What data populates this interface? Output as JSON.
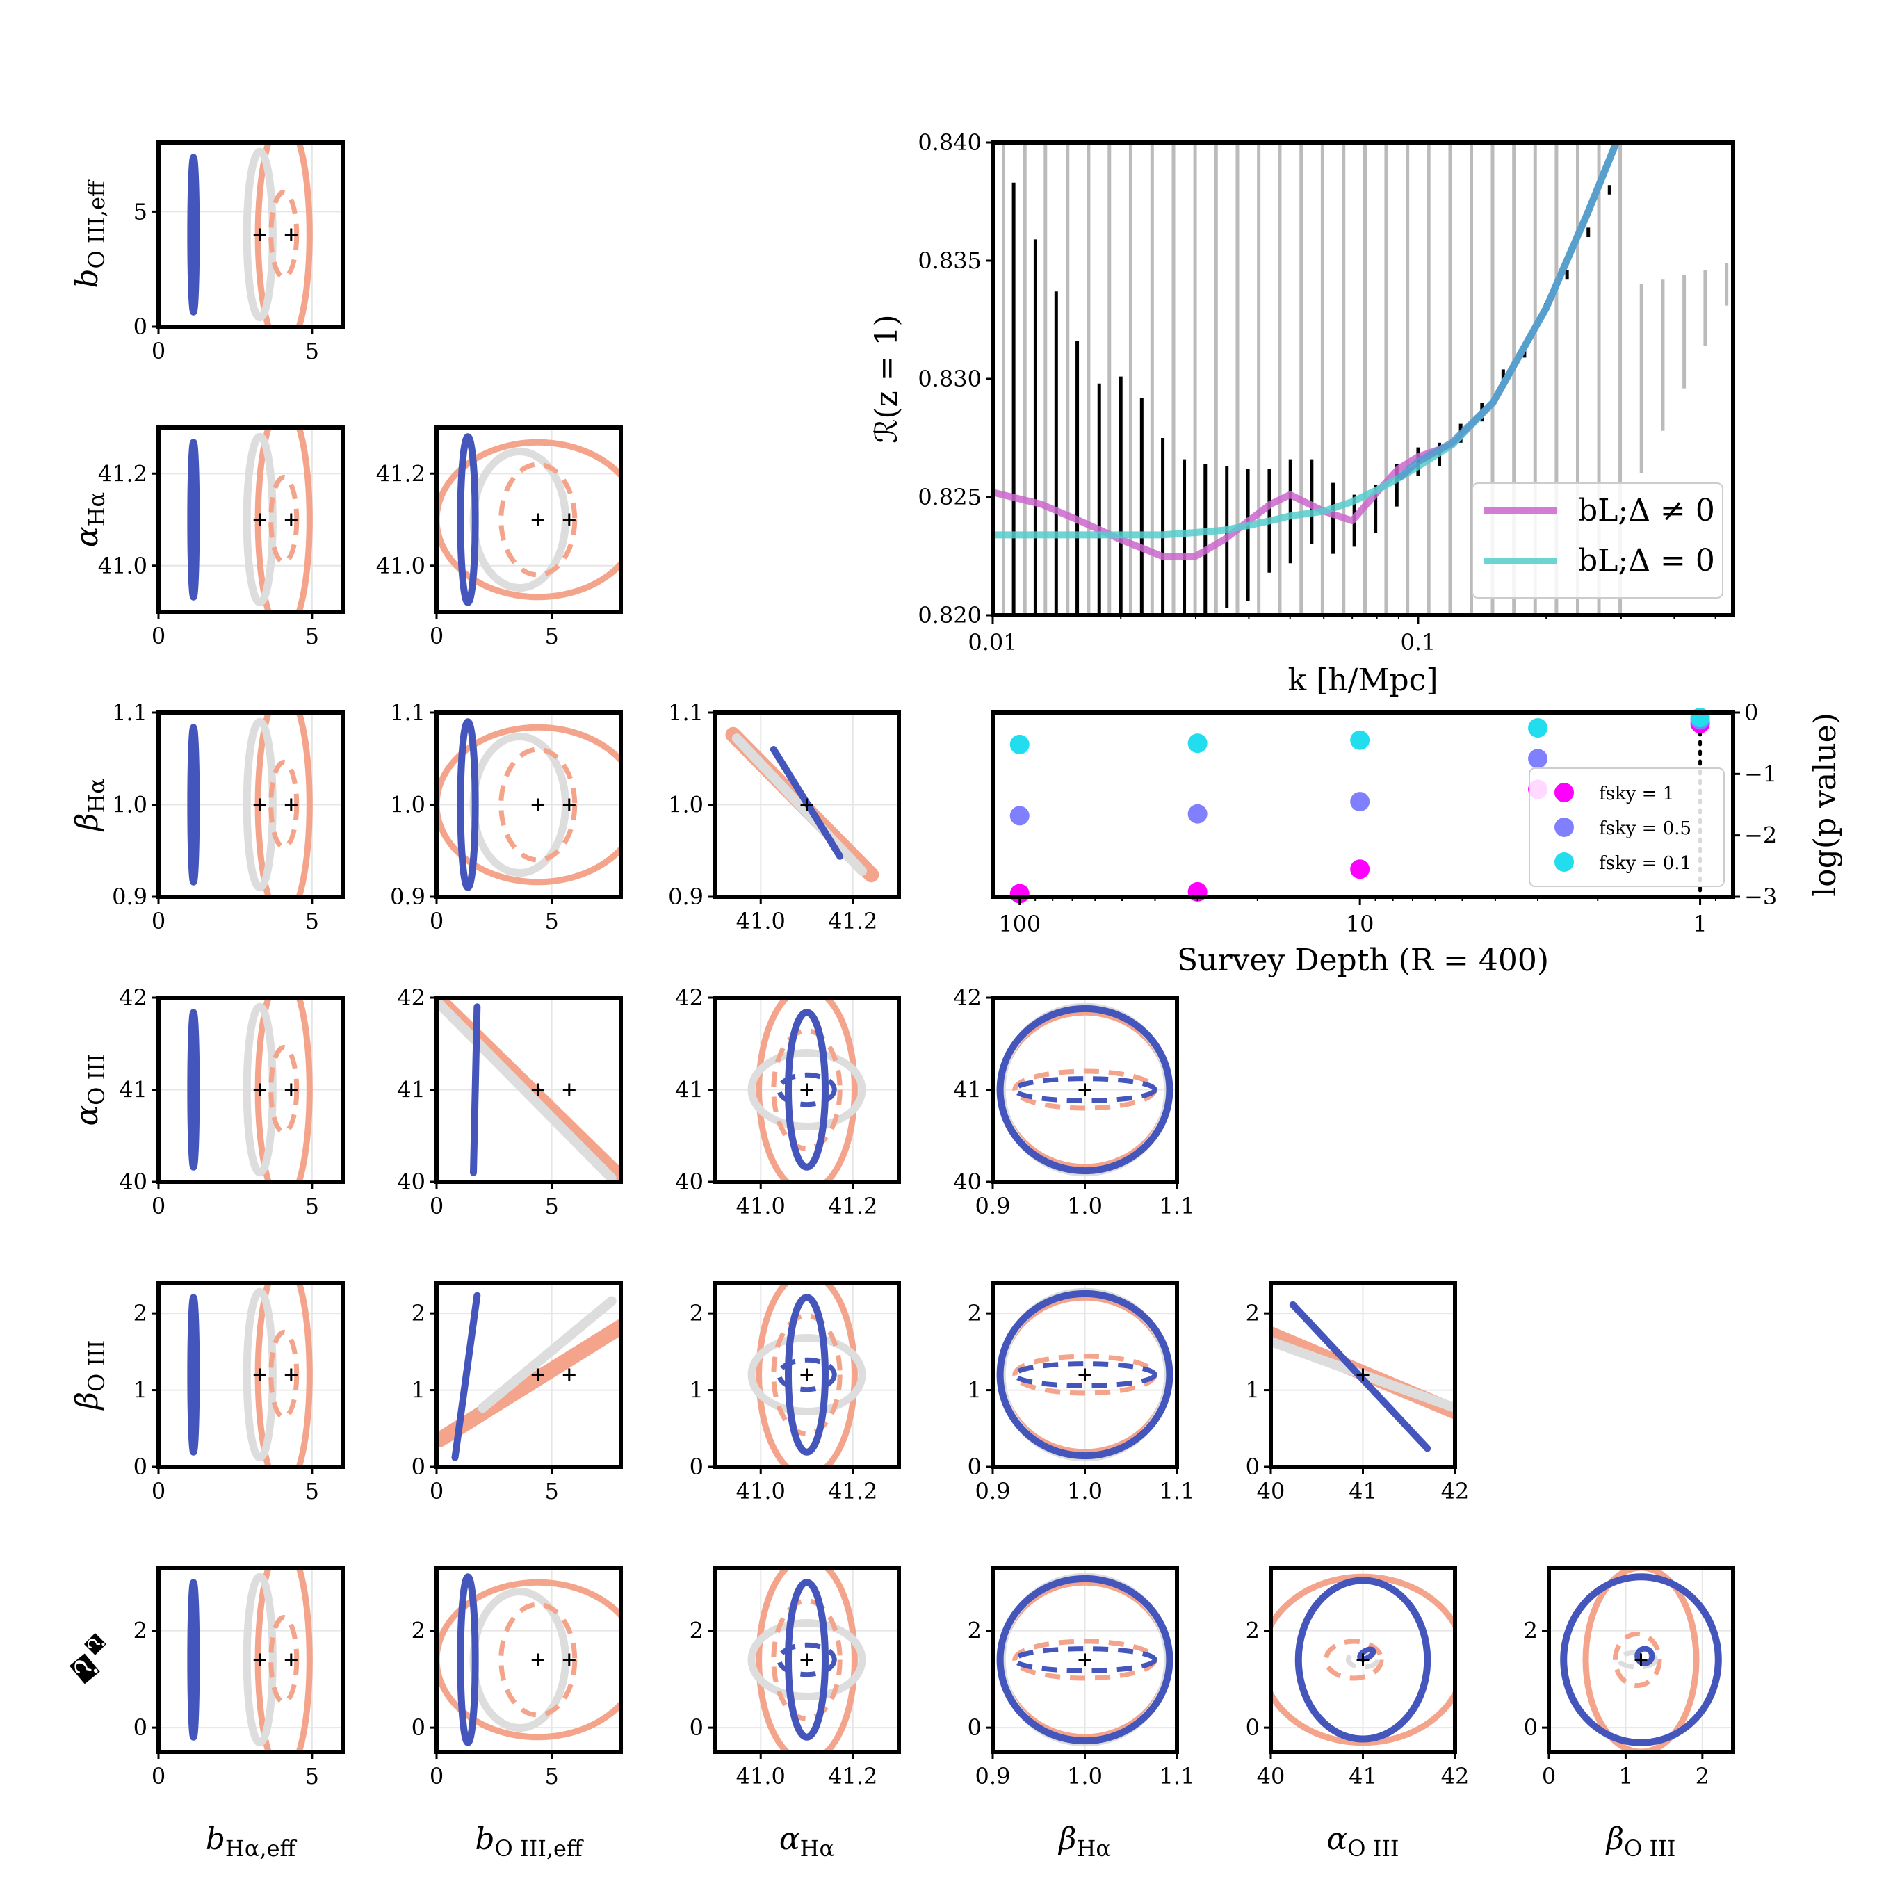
{
  "corner_plot": {
    "params": [
      "b_Hα,eff",
      "b_O III,eff",
      "α_Hα",
      "β_Hα",
      "α_O III",
      "β_O III",
      "N"
    ],
    "param_labels": [
      "bHα,eff",
      "bO III,eff",
      "αHα",
      "βHα",
      "αO III",
      "βO III",
      "𝒩"
    ],
    "fiducial": [
      1.2,
      4.8,
      41.1,
      1.0,
      41.0,
      1.2,
      1.45
    ],
    "alt_fiducials": [
      [
        3.2,
        3.5
      ],
      [
        4.2,
        4.8
      ]
    ],
    "colors": {
      "blue": "#4455bb",
      "gray": "#dddddd",
      "salmon": "#f4a48b"
    },
    "axes": [
      {
        "range": [
          0,
          6
        ],
        "ticks": [
          0,
          5
        ],
        "tick_labels": [
          "0",
          "5"
        ]
      },
      {
        "range": [
          0,
          8
        ],
        "ticks": [
          0,
          5
        ],
        "tick_labels": [
          "0",
          "5"
        ]
      },
      {
        "range": [
          40.9,
          41.3
        ],
        "ticks": [
          41.0,
          41.2
        ],
        "tick_labels": [
          "41.0",
          "41.2"
        ]
      },
      {
        "range": [
          0.9,
          1.1
        ],
        "ticks": [
          0.9,
          1.0,
          1.1
        ],
        "tick_labels": [
          "0.9",
          "1.0",
          "1.1"
        ]
      },
      {
        "range": [
          40,
          42
        ],
        "ticks": [
          40,
          41,
          42
        ],
        "tick_labels": [
          "40",
          "41",
          "42"
        ]
      },
      {
        "range": [
          0,
          2.4
        ],
        "ticks": [
          0,
          1,
          2
        ],
        "tick_labels": [
          "0",
          "1",
          "2"
        ]
      },
      {
        "range": [
          -0.5,
          3.3
        ],
        "ticks": [
          0,
          2
        ],
        "tick_labels": [
          "0",
          "2"
        ]
      }
    ],
    "y_axes": [
      null,
      {
        "range": [
          0,
          8
        ],
        "ticks": [
          0,
          5
        ],
        "tick_labels": [
          "0",
          "5"
        ]
      },
      {
        "range": [
          40.9,
          41.3
        ],
        "ticks": [
          41.0,
          41.2
        ],
        "tick_labels": [
          "41.0",
          "41.2"
        ]
      },
      {
        "range": [
          0.9,
          1.1
        ],
        "ticks": [
          0.9,
          1.0,
          1.1
        ],
        "tick_labels": [
          "0.9",
          "1.0",
          "1.1"
        ]
      },
      {
        "range": [
          40,
          42
        ],
        "ticks": [
          40,
          41,
          42
        ],
        "tick_labels": [
          "40",
          "41",
          "42"
        ]
      },
      {
        "range": [
          0,
          2.4
        ],
        "ticks": [
          0,
          1,
          2
        ],
        "tick_labels": [
          "0",
          "1",
          "2"
        ]
      },
      {
        "range": [
          -0.5,
          3.3
        ],
        "ticks": [
          0,
          2
        ],
        "tick_labels": [
          "0",
          "2"
        ]
      }
    ]
  },
  "chart_data": [
    {
      "type": "line",
      "xlabel": "k [h/Mpc]",
      "ylabel": "ℛ(z = 1)",
      "x_scale": "log",
      "xlim": [
        0.01,
        0.55
      ],
      "ylim": [
        0.82,
        0.84
      ],
      "x_ticks": [
        "0.01",
        "0.1"
      ],
      "y_ticks": [
        "0.820",
        "0.825",
        "0.830",
        "0.835",
        "0.840"
      ],
      "legend_position": "bottom-right",
      "series": [
        {
          "name": "bL;Δ ≠ 0",
          "color": "#cc66cc",
          "x": [
            0.01,
            0.013,
            0.016,
            0.02,
            0.025,
            0.03,
            0.035,
            0.04,
            0.045,
            0.05,
            0.06,
            0.07,
            0.08,
            0.09,
            0.1,
            0.12,
            0.15,
            0.2,
            0.25,
            0.3
          ],
          "y": [
            0.8252,
            0.8247,
            0.824,
            0.8232,
            0.8225,
            0.8225,
            0.8232,
            0.824,
            0.8247,
            0.8251,
            0.8244,
            0.824,
            0.8252,
            0.8262,
            0.8267,
            0.8272,
            0.829,
            0.833,
            0.837,
            0.8405
          ]
        },
        {
          "name": "bL;Δ = 0",
          "color": "#55cccc",
          "x": [
            0.01,
            0.013,
            0.016,
            0.02,
            0.025,
            0.03,
            0.035,
            0.04,
            0.045,
            0.05,
            0.06,
            0.07,
            0.08,
            0.09,
            0.1,
            0.12,
            0.15,
            0.2,
            0.25,
            0.3
          ],
          "y": [
            0.8234,
            0.8234,
            0.8234,
            0.8234,
            0.8234,
            0.8235,
            0.8236,
            0.8238,
            0.824,
            0.8242,
            0.8244,
            0.8248,
            0.8253,
            0.8258,
            0.8263,
            0.8272,
            0.829,
            0.833,
            0.837,
            0.8405
          ]
        },
        {
          "name": "",
          "color": "#5599cc",
          "x": [
            0.09,
            0.1,
            0.12,
            0.15,
            0.2,
            0.25,
            0.3
          ],
          "y": [
            0.8258,
            0.8265,
            0.8273,
            0.829,
            0.833,
            0.837,
            0.8405
          ]
        }
      ],
      "errorbars_black": [
        {
          "x": 0.01,
          "y": 0.825,
          "err": 0.025
        },
        {
          "x": 0.0112,
          "y": 0.8248,
          "err": 0.0135
        },
        {
          "x": 0.0126,
          "y": 0.8246,
          "err": 0.0113
        },
        {
          "x": 0.0141,
          "y": 0.8244,
          "err": 0.0093
        },
        {
          "x": 0.0158,
          "y": 0.824,
          "err": 0.0076
        },
        {
          "x": 0.0178,
          "y": 0.8237,
          "err": 0.0061
        },
        {
          "x": 0.02,
          "y": 0.8233,
          "err": 0.0068
        },
        {
          "x": 0.0224,
          "y": 0.8229,
          "err": 0.0063
        },
        {
          "x": 0.0251,
          "y": 0.8226,
          "err": 0.0049
        },
        {
          "x": 0.0282,
          "y": 0.8224,
          "err": 0.0042
        },
        {
          "x": 0.0316,
          "y": 0.823,
          "err": 0.0034
        },
        {
          "x": 0.0355,
          "y": 0.8233,
          "err": 0.003
        },
        {
          "x": 0.0398,
          "y": 0.8234,
          "err": 0.0028
        },
        {
          "x": 0.0447,
          "y": 0.824,
          "err": 0.0022
        },
        {
          "x": 0.0501,
          "y": 0.8244,
          "err": 0.0022
        },
        {
          "x": 0.0562,
          "y": 0.8248,
          "err": 0.0018
        },
        {
          "x": 0.0631,
          "y": 0.8241,
          "err": 0.0015
        },
        {
          "x": 0.0708,
          "y": 0.824,
          "err": 0.0011
        },
        {
          "x": 0.0794,
          "y": 0.8245,
          "err": 0.001
        },
        {
          "x": 0.0891,
          "y": 0.8255,
          "err": 0.0009
        },
        {
          "x": 0.1,
          "y": 0.8265,
          "err": 0.0006
        },
        {
          "x": 0.1122,
          "y": 0.8268,
          "err": 0.0005
        },
        {
          "x": 0.1259,
          "y": 0.8277,
          "err": 0.0004
        },
        {
          "x": 0.1413,
          "y": 0.8286,
          "err": 0.0004
        },
        {
          "x": 0.1585,
          "y": 0.83,
          "err": 0.0004
        },
        {
          "x": 0.1778,
          "y": 0.8312,
          "err": 0.0003
        },
        {
          "x": 0.1995,
          "y": 0.833,
          "err": 0.0002
        },
        {
          "x": 0.2239,
          "y": 0.8344,
          "err": 0.0002
        },
        {
          "x": 0.2512,
          "y": 0.8362,
          "err": 0.0002
        },
        {
          "x": 0.2818,
          "y": 0.838,
          "err": 0.0002
        }
      ],
      "errorbars_gray": [
        {
          "x": 0.0106,
          "y": 0.825,
          "err": 0.03
        },
        {
          "x": 0.0119,
          "y": 0.8248,
          "err": 0.03
        },
        {
          "x": 0.0133,
          "y": 0.8246,
          "err": 0.03
        },
        {
          "x": 0.015,
          "y": 0.8244,
          "err": 0.03
        },
        {
          "x": 0.0168,
          "y": 0.824,
          "err": 0.03
        },
        {
          "x": 0.0188,
          "y": 0.8237,
          "err": 0.03
        },
        {
          "x": 0.0211,
          "y": 0.8233,
          "err": 0.03
        },
        {
          "x": 0.0237,
          "y": 0.8229,
          "err": 0.03
        },
        {
          "x": 0.0266,
          "y": 0.8226,
          "err": 0.03
        },
        {
          "x": 0.0299,
          "y": 0.8224,
          "err": 0.03
        },
        {
          "x": 0.0335,
          "y": 0.823,
          "err": 0.03
        },
        {
          "x": 0.0376,
          "y": 0.8233,
          "err": 0.03
        },
        {
          "x": 0.0422,
          "y": 0.8234,
          "err": 0.03
        },
        {
          "x": 0.0473,
          "y": 0.824,
          "err": 0.03
        },
        {
          "x": 0.0531,
          "y": 0.8244,
          "err": 0.03
        },
        {
          "x": 0.0596,
          "y": 0.8248,
          "err": 0.03
        },
        {
          "x": 0.0668,
          "y": 0.8241,
          "err": 0.03
        },
        {
          "x": 0.075,
          "y": 0.824,
          "err": 0.03
        },
        {
          "x": 0.0841,
          "y": 0.8245,
          "err": 0.03
        },
        {
          "x": 0.0944,
          "y": 0.8255,
          "err": 0.03
        },
        {
          "x": 0.1059,
          "y": 0.8265,
          "err": 0.03
        },
        {
          "x": 0.1189,
          "y": 0.8268,
          "err": 0.03
        },
        {
          "x": 0.1334,
          "y": 0.8277,
          "err": 0.03
        },
        {
          "x": 0.1496,
          "y": 0.8286,
          "err": 0.03
        },
        {
          "x": 0.1679,
          "y": 0.83,
          "err": 0.03
        },
        {
          "x": 0.1884,
          "y": 0.8312,
          "err": 0.03
        },
        {
          "x": 0.2114,
          "y": 0.833,
          "err": 0.03
        },
        {
          "x": 0.2372,
          "y": 0.8344,
          "err": 0.03
        },
        {
          "x": 0.2661,
          "y": 0.8362,
          "err": 0.03
        },
        {
          "x": 0.2985,
          "y": 0.838,
          "err": 0.03
        },
        {
          "x": 0.335,
          "y": 0.83,
          "err": 0.004
        },
        {
          "x": 0.376,
          "y": 0.831,
          "err": 0.0032
        },
        {
          "x": 0.422,
          "y": 0.832,
          "err": 0.0024
        },
        {
          "x": 0.473,
          "y": 0.833,
          "err": 0.0016
        },
        {
          "x": 0.531,
          "y": 0.834,
          "err": 0.0009
        }
      ]
    },
    {
      "type": "scatter",
      "xlabel": "Survey Depth (R = 400)",
      "ylabel": "log(p value)",
      "x_scale": "log",
      "x_reversed": true,
      "xlim": [
        120,
        0.8
      ],
      "ylim": [
        -3,
        0
      ],
      "x_ticks": [
        "100",
        "10",
        "1"
      ],
      "y_ticks": [
        "0",
        "−1",
        "−2",
        "−3"
      ],
      "legend_position": "right",
      "reference_line_x": 1,
      "series": [
        {
          "name": "fsky = 1",
          "color": "#ff00ff",
          "x": [
            100,
            30,
            10,
            3,
            1
          ],
          "y": [
            -2.95,
            -2.92,
            -2.55,
            -1.25,
            -0.18
          ]
        },
        {
          "name": "fsky = 0.5",
          "color": "#8080ff",
          "x": [
            100,
            30,
            10,
            3,
            1
          ],
          "y": [
            -1.68,
            -1.65,
            -1.45,
            -0.75,
            -0.12
          ]
        },
        {
          "name": "fsky = 0.1",
          "color": "#22ddee",
          "x": [
            100,
            30,
            10,
            3,
            1
          ],
          "y": [
            -0.52,
            -0.5,
            -0.45,
            -0.25,
            -0.08
          ]
        }
      ]
    }
  ]
}
